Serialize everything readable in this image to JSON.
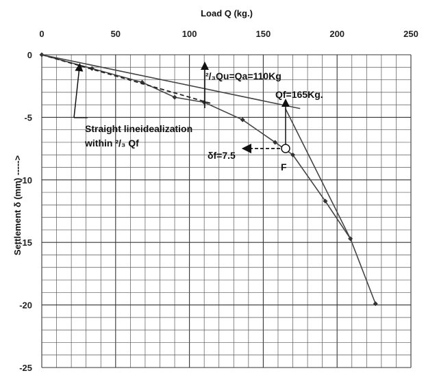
{
  "chart_data": {
    "type": "line",
    "xlabel": "Load  Q (kg.)",
    "ylabel": "Settlement δ (mm)  ----->",
    "xlim": [
      0,
      250
    ],
    "ylim": [
      -25,
      0
    ],
    "x_ticks": [
      "0",
      "50",
      "100",
      "150",
      "200",
      "250"
    ],
    "y_ticks": [
      "0",
      "-5",
      "-10",
      "-15",
      "-20",
      "-25"
    ],
    "grid": true,
    "series": [
      {
        "style": "solid-diamond-markers",
        "points": [
          [
            0,
            0
          ],
          [
            34,
            -1.1
          ],
          [
            68,
            -2.2
          ],
          [
            90,
            -3.4
          ],
          [
            110,
            -3.8
          ],
          [
            136,
            -5.2
          ],
          [
            158,
            -7.0
          ],
          [
            170,
            -8.0
          ],
          [
            192,
            -11.7
          ],
          [
            209,
            -14.7
          ],
          [
            226,
            -19.9
          ]
        ]
      },
      {
        "style": "dashed",
        "points": [
          [
            0,
            0
          ],
          [
            115,
            -3.9
          ]
        ]
      },
      {
        "style": "solid-line",
        "points": [
          [
            0,
            0
          ],
          [
            175,
            -4.3
          ]
        ]
      },
      {
        "style": "solid-line",
        "points": [
          [
            165,
            -4.3
          ],
          [
            209,
            -14.7
          ]
        ]
      }
    ],
    "annotations": {
      "straight_line_1": "Straight lineidealization",
      "straight_line_2": "within ²/₃ Qf",
      "two_thirds": "²/₃Qu=Qa=110Kg",
      "qf": "Qf=165Kg.",
      "delta": "δf=7.5",
      "point_f": "F"
    },
    "point_f": [
      165,
      -7.5
    ]
  }
}
